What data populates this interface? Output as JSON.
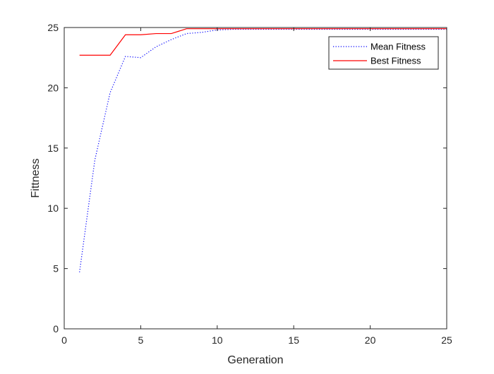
{
  "chart_data": {
    "type": "line",
    "title": "",
    "xlabel": "Generation",
    "ylabel": "Fittness",
    "xlim": [
      0,
      25
    ],
    "ylim": [
      0,
      25
    ],
    "xticks": [
      0,
      5,
      10,
      15,
      20,
      25
    ],
    "yticks": [
      0,
      5,
      10,
      15,
      20,
      25
    ],
    "grid": false,
    "legend_position": "top-right",
    "series": [
      {
        "name": "Mean Fitness",
        "color": "#0000ff",
        "style": "dotted",
        "x": [
          1,
          2,
          3,
          4,
          5,
          6,
          7,
          8,
          9,
          10,
          11,
          12,
          13,
          14,
          15,
          16,
          17,
          18,
          19,
          20,
          21,
          22,
          23,
          24,
          25
        ],
        "y": [
          4.7,
          14.0,
          19.6,
          22.6,
          22.5,
          23.4,
          24.0,
          24.5,
          24.6,
          24.8,
          24.85,
          24.85,
          24.85,
          24.85,
          24.85,
          24.85,
          24.85,
          24.85,
          24.85,
          24.85,
          24.85,
          24.85,
          24.85,
          24.85,
          24.85
        ]
      },
      {
        "name": "Best Fitness",
        "color": "#ff0000",
        "style": "solid",
        "x": [
          1,
          2,
          3,
          4,
          5,
          6,
          7,
          8,
          9,
          10,
          11,
          12,
          13,
          14,
          15,
          16,
          17,
          18,
          19,
          20,
          21,
          22,
          23,
          24,
          25
        ],
        "y": [
          22.7,
          22.7,
          22.7,
          24.4,
          24.4,
          24.5,
          24.5,
          24.9,
          24.9,
          24.9,
          24.9,
          24.9,
          24.9,
          24.9,
          24.9,
          24.9,
          24.9,
          24.9,
          24.9,
          24.9,
          24.9,
          24.9,
          24.9,
          24.9,
          24.9
        ]
      }
    ]
  }
}
